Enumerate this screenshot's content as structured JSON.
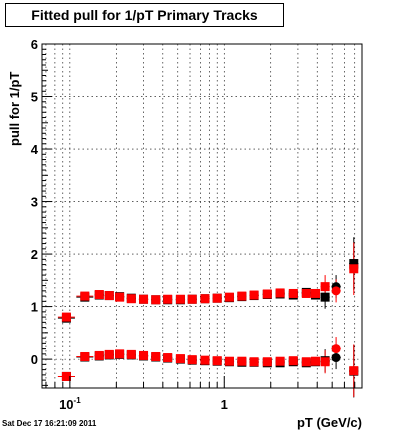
{
  "title": "Fitted pull for 1/pT  Primary Tracks",
  "footer_date": "Sat Dec 17 16:21:09 2011",
  "colors": {
    "series1": "#000000",
    "series2": "#ff0000",
    "grid": "#000000"
  },
  "chart_data": {
    "type": "scatter",
    "title": "Fitted pull for 1/pT  Primary Tracks",
    "xlabel": "pT (GeV/c)",
    "ylabel": "pull for 1/pT",
    "xscale": "log",
    "xlim": [
      0.066,
      7.8
    ],
    "ylim": [
      -0.55,
      6.0
    ],
    "grid": true,
    "y_ticks": [
      {
        "value": 0,
        "label": "0"
      },
      {
        "value": 1,
        "label": "1"
      },
      {
        "value": 2,
        "label": "2"
      },
      {
        "value": 3,
        "label": "3"
      },
      {
        "value": 4,
        "label": "4"
      },
      {
        "value": 5,
        "label": "5"
      },
      {
        "value": 6,
        "label": "6"
      }
    ],
    "x_tick_labels": [
      {
        "value": 0.1,
        "base": "10",
        "exp": "-1"
      },
      {
        "value": 1,
        "base": "1",
        "exp": ""
      }
    ],
    "series": [
      {
        "color": "#000000",
        "marker": "square",
        "points": [
          {
            "x": 0.095,
            "y": 0.78
          },
          {
            "x": 0.125,
            "y": 1.18
          },
          {
            "x": 0.155,
            "y": 1.22
          },
          {
            "x": 0.18,
            "y": 1.21
          },
          {
            "x": 0.21,
            "y": 1.19
          },
          {
            "x": 0.25,
            "y": 1.16
          },
          {
            "x": 0.3,
            "y": 1.14
          },
          {
            "x": 0.36,
            "y": 1.13
          },
          {
            "x": 0.43,
            "y": 1.13
          },
          {
            "x": 0.52,
            "y": 1.13
          },
          {
            "x": 0.62,
            "y": 1.14
          },
          {
            "x": 0.75,
            "y": 1.15
          },
          {
            "x": 0.9,
            "y": 1.16
          },
          {
            "x": 1.08,
            "y": 1.17
          },
          {
            "x": 1.3,
            "y": 1.19
          },
          {
            "x": 1.56,
            "y": 1.21
          },
          {
            "x": 1.9,
            "y": 1.23
          },
          {
            "x": 2.3,
            "y": 1.24
          },
          {
            "x": 2.8,
            "y": 1.22
          },
          {
            "x": 3.4,
            "y": 1.27
          },
          {
            "x": 3.9,
            "y": 1.22
          },
          {
            "x": 4.5,
            "y": 1.18
          },
          {
            "x": 5.3,
            "y": 1.38
          },
          {
            "x": 6.9,
            "y": 1.82
          },
          {
            "x": 0.095,
            "y": -0.33
          },
          {
            "x": 0.125,
            "y": 0.04
          },
          {
            "x": 0.155,
            "y": 0.06
          },
          {
            "x": 0.18,
            "y": 0.08
          },
          {
            "x": 0.21,
            "y": 0.09
          },
          {
            "x": 0.25,
            "y": 0.08
          },
          {
            "x": 0.3,
            "y": 0.06
          },
          {
            "x": 0.36,
            "y": 0.04
          },
          {
            "x": 0.43,
            "y": 0.02
          },
          {
            "x": 0.52,
            "y": 0.0
          },
          {
            "x": 0.62,
            "y": -0.02
          },
          {
            "x": 0.75,
            "y": -0.03
          },
          {
            "x": 0.9,
            "y": -0.04
          },
          {
            "x": 1.08,
            "y": -0.05
          },
          {
            "x": 1.3,
            "y": -0.06
          },
          {
            "x": 1.56,
            "y": -0.06
          },
          {
            "x": 1.9,
            "y": -0.07
          },
          {
            "x": 2.3,
            "y": -0.07
          },
          {
            "x": 2.8,
            "y": -0.05
          },
          {
            "x": 3.4,
            "y": -0.07
          },
          {
            "x": 3.9,
            "y": -0.05
          },
          {
            "x": 4.5,
            "y": -0.03
          },
          {
            "x": 5.3,
            "y": 0.03
          },
          {
            "x": 6.9,
            "y": -0.23
          }
        ]
      },
      {
        "color": "#ff0000",
        "marker": "square",
        "points": [
          {
            "x": 0.095,
            "y": 0.8
          },
          {
            "x": 0.125,
            "y": 1.2
          },
          {
            "x": 0.155,
            "y": 1.23
          },
          {
            "x": 0.18,
            "y": 1.21
          },
          {
            "x": 0.21,
            "y": 1.18
          },
          {
            "x": 0.25,
            "y": 1.15
          },
          {
            "x": 0.3,
            "y": 1.14
          },
          {
            "x": 0.36,
            "y": 1.13
          },
          {
            "x": 0.43,
            "y": 1.14
          },
          {
            "x": 0.52,
            "y": 1.14
          },
          {
            "x": 0.62,
            "y": 1.14
          },
          {
            "x": 0.75,
            "y": 1.15
          },
          {
            "x": 0.9,
            "y": 1.16
          },
          {
            "x": 1.08,
            "y": 1.18
          },
          {
            "x": 1.3,
            "y": 1.2
          },
          {
            "x": 1.56,
            "y": 1.22
          },
          {
            "x": 1.9,
            "y": 1.24
          },
          {
            "x": 2.3,
            "y": 1.26
          },
          {
            "x": 2.8,
            "y": 1.25
          },
          {
            "x": 3.4,
            "y": 1.25
          },
          {
            "x": 3.9,
            "y": 1.25
          },
          {
            "x": 4.5,
            "y": 1.38
          },
          {
            "x": 5.3,
            "y": 1.3
          },
          {
            "x": 6.9,
            "y": 1.72
          },
          {
            "x": 0.095,
            "y": -0.33
          },
          {
            "x": 0.125,
            "y": 0.05
          },
          {
            "x": 0.155,
            "y": 0.07
          },
          {
            "x": 0.18,
            "y": 0.09
          },
          {
            "x": 0.21,
            "y": 0.1
          },
          {
            "x": 0.25,
            "y": 0.09
          },
          {
            "x": 0.3,
            "y": 0.07
          },
          {
            "x": 0.36,
            "y": 0.05
          },
          {
            "x": 0.43,
            "y": 0.03
          },
          {
            "x": 0.52,
            "y": 0.01
          },
          {
            "x": 0.62,
            "y": -0.01
          },
          {
            "x": 0.75,
            "y": -0.02
          },
          {
            "x": 0.9,
            "y": -0.03
          },
          {
            "x": 1.08,
            "y": -0.04
          },
          {
            "x": 1.3,
            "y": -0.04
          },
          {
            "x": 1.56,
            "y": -0.05
          },
          {
            "x": 1.9,
            "y": -0.05
          },
          {
            "x": 2.3,
            "y": -0.04
          },
          {
            "x": 2.8,
            "y": -0.03
          },
          {
            "x": 3.4,
            "y": -0.05
          },
          {
            "x": 3.9,
            "y": -0.04
          },
          {
            "x": 4.5,
            "y": -0.05
          },
          {
            "x": 5.3,
            "y": 0.2
          },
          {
            "x": 6.9,
            "y": -0.22
          }
        ]
      }
    ]
  }
}
